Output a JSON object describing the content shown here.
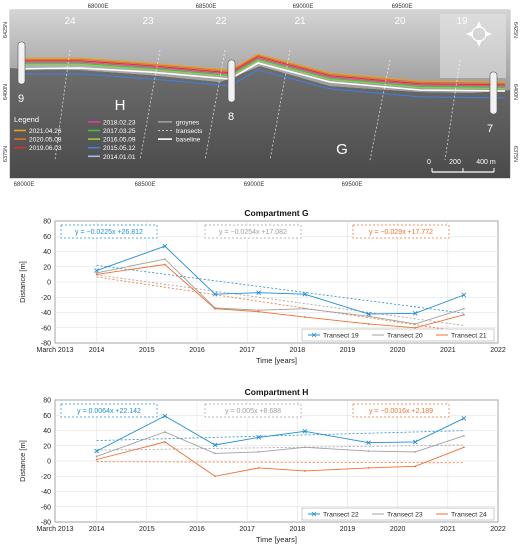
{
  "map": {
    "coords_x": [
      "68000E",
      "68500E",
      "69000E",
      "69500E"
    ],
    "coords_y": [
      "6425N",
      "6400N",
      "6375N"
    ],
    "coords_y_right": [
      "6425N",
      "6400N",
      "6375N"
    ],
    "transect_numbers": [
      "24",
      "23",
      "22",
      "21",
      "20",
      "19"
    ],
    "groyne_numbers": [
      "9",
      "8",
      "7"
    ],
    "compartment_labels": [
      "H",
      "G"
    ],
    "legend": {
      "title": "Legend",
      "col1": [
        {
          "label": "2021.04.26",
          "color": "#e8a020"
        },
        {
          "label": "2020.05.08",
          "color": "#e07020"
        },
        {
          "label": "2019.06.03",
          "color": "#e03020"
        }
      ],
      "col2": [
        {
          "label": "2018.02.23",
          "color": "#e040a0"
        },
        {
          "label": "2017.03.25",
          "color": "#40c040"
        },
        {
          "label": "2016.05.09",
          "color": "#90d040"
        },
        {
          "label": "2015.05.12",
          "color": "#4080e0"
        },
        {
          "label": "2014.01.01",
          "color": "#a0c0e0"
        }
      ],
      "col3": [
        {
          "label": "groynes",
          "style": "solid"
        },
        {
          "label": "transects",
          "style": "dashed"
        },
        {
          "label": "baseline",
          "style": "white"
        }
      ]
    },
    "scalebar": {
      "labels": [
        "0",
        "200",
        "400 m"
      ]
    }
  },
  "chart_data": [
    {
      "type": "line",
      "title": "Compartment G",
      "xlabel": "Time [years]",
      "ylabel": "Distance [m]",
      "xlim": [
        2013.17,
        2022.0
      ],
      "ylim": [
        -80,
        80
      ],
      "yticks": [
        -80,
        -60,
        -40,
        -20,
        0,
        20,
        40,
        60,
        80
      ],
      "xticks": [
        2013.17,
        2014,
        2015,
        2016,
        2017,
        2018,
        2019,
        2020,
        2021,
        2022
      ],
      "xtick_labels": [
        "March 2013",
        "2014",
        "2015",
        "2016",
        "2017",
        "2018",
        "2019",
        "2020",
        "2021",
        "2022"
      ],
      "grid": true,
      "legend_position": "bottom-right",
      "series": [
        {
          "name": "Transect 19",
          "color": "#1f8fd6",
          "marker": "x",
          "x": [
            2014.0,
            2015.36,
            2016.36,
            2017.23,
            2018.15,
            2019.42,
            2020.35,
            2021.32
          ],
          "y": [
            15,
            47,
            -16,
            -14,
            -16,
            -42,
            -41,
            -17
          ],
          "trend": {
            "slope": -0.0225,
            "intercept": 26.812,
            "label": "y = −0.0225x +26.812"
          }
        },
        {
          "name": "Transect 20",
          "color": "#a0a0a0",
          "marker": "",
          "x": [
            2014.0,
            2015.36,
            2016.36,
            2017.23,
            2018.15,
            2019.42,
            2020.35,
            2021.32
          ],
          "y": [
            12,
            30,
            -34,
            -37,
            -35,
            -45,
            -55,
            -35
          ],
          "trend": {
            "slope": -0.0254,
            "intercept": 17.082,
            "label": "y = −0.0254x +17.082"
          }
        },
        {
          "name": "Transect 21",
          "color": "#f07030",
          "marker": "",
          "x": [
            2014.0,
            2015.36,
            2016.36,
            2017.23,
            2018.15,
            2019.42,
            2020.35,
            2021.32
          ],
          "y": [
            10,
            23,
            -35,
            -39,
            -46,
            -55,
            -60,
            -43
          ],
          "trend": {
            "slope": -0.029,
            "intercept": 17.772,
            "label": "y = −0.029x +17.772"
          }
        }
      ]
    },
    {
      "type": "line",
      "title": "Compartment H",
      "xlabel": "Time [years]",
      "ylabel": "Distance [m]",
      "xlim": [
        2013.17,
        2022.0
      ],
      "ylim": [
        -80,
        80
      ],
      "yticks": [
        -80,
        -60,
        -40,
        -20,
        0,
        20,
        40,
        60,
        80
      ],
      "xticks": [
        2013.17,
        2014,
        2015,
        2016,
        2017,
        2018,
        2019,
        2020,
        2021,
        2022
      ],
      "xtick_labels": [
        "March 2013",
        "2014",
        "2015",
        "2016",
        "2017",
        "2018",
        "2019",
        "2020",
        "2021",
        "2022"
      ],
      "grid": true,
      "legend_position": "bottom-right",
      "series": [
        {
          "name": "Transect 22",
          "color": "#1f8fd6",
          "marker": "x",
          "x": [
            2014.0,
            2015.36,
            2016.36,
            2017.23,
            2018.15,
            2019.42,
            2020.35,
            2021.32
          ],
          "y": [
            13,
            59,
            21,
            31,
            39,
            24,
            25,
            56
          ],
          "trend": {
            "slope": 0.0064,
            "intercept": 22.142,
            "label": "y = 0.0064x +22.142"
          }
        },
        {
          "name": "Transect 23",
          "color": "#a0a0a0",
          "marker": "",
          "x": [
            2014.0,
            2015.36,
            2016.36,
            2017.23,
            2018.15,
            2019.42,
            2020.35,
            2021.32
          ],
          "y": [
            6,
            38,
            10,
            12,
            18,
            13,
            12,
            33
          ],
          "trend": {
            "slope": 0.005,
            "intercept": 8.688,
            "label": "y = 0.005x +8.688"
          }
        },
        {
          "name": "Transect 24",
          "color": "#f07030",
          "marker": "",
          "x": [
            2014.0,
            2015.36,
            2016.36,
            2017.23,
            2018.15,
            2019.42,
            2020.35,
            2021.32
          ],
          "y": [
            2,
            25,
            -20,
            -9,
            -13,
            -9,
            -7,
            18
          ],
          "trend": {
            "slope": -0.0016,
            "intercept": 2.189,
            "label": "y = −0.0016x +2.189"
          }
        }
      ]
    }
  ]
}
